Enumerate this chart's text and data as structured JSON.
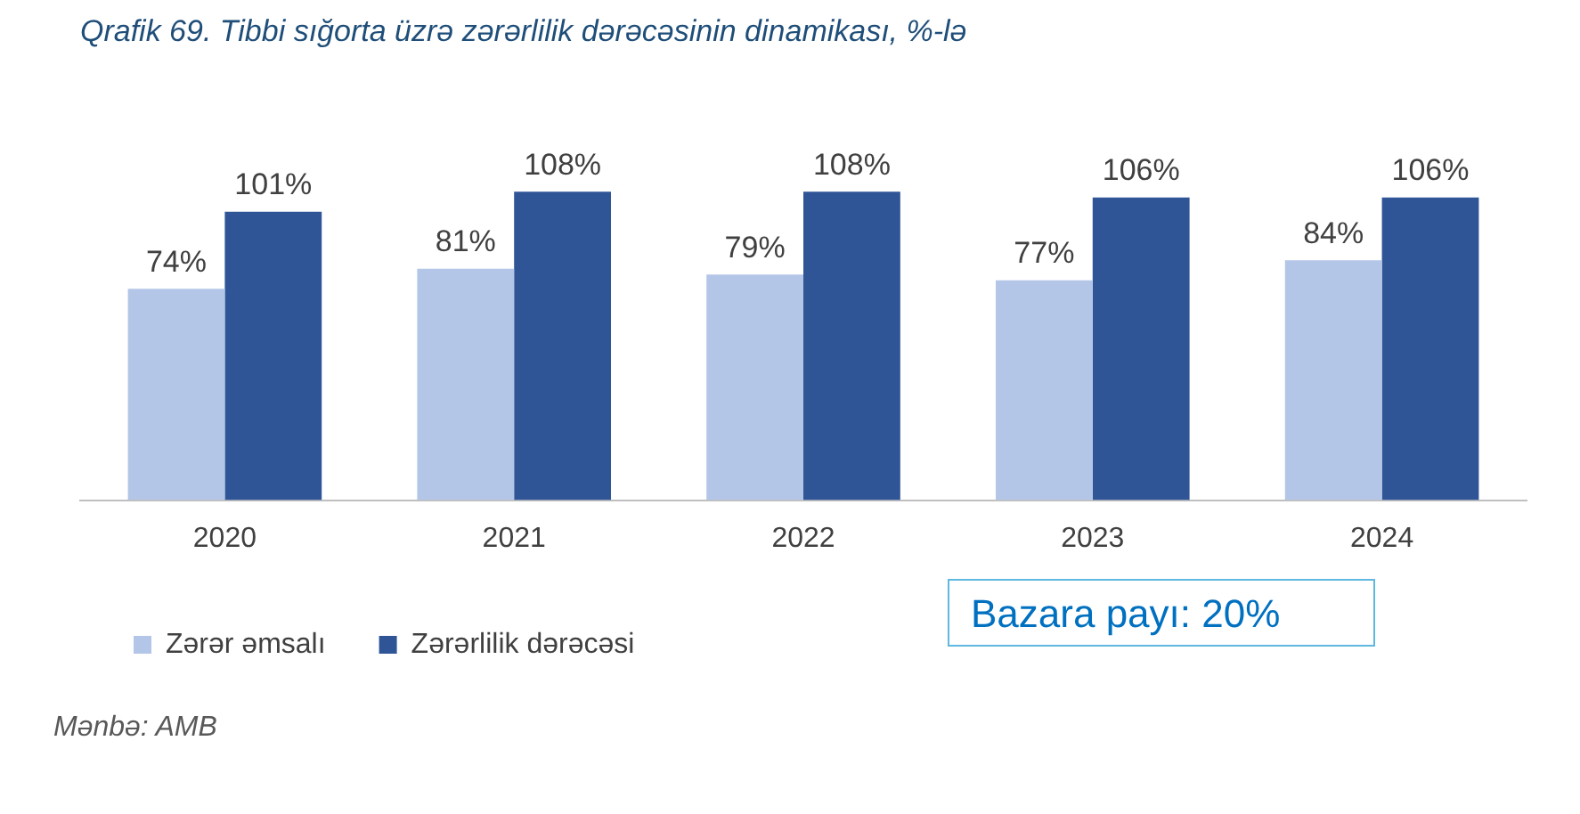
{
  "chart_data": {
    "type": "bar",
    "title": "Qrafik 69. Tibbi sığorta üzrə zərərlilik dərəcəsinin dinamikası, %-lə",
    "categories": [
      "2020",
      "2021",
      "2022",
      "2023",
      "2024"
    ],
    "series": [
      {
        "name": "Zərər əmsalı",
        "color": "#b4c6e7",
        "values": [
          74,
          81,
          79,
          77,
          84
        ],
        "value_labels": [
          "74%",
          "81%",
          "79%",
          "77%",
          "84%"
        ]
      },
      {
        "name": "Zərərlilik dərəcəsi",
        "color": "#2f5597",
        "values": [
          101,
          108,
          108,
          106,
          106
        ],
        "value_labels": [
          "101%",
          "108%",
          "108%",
          "106%",
          "106%"
        ]
      }
    ],
    "legend": "bottom left",
    "grid": false,
    "tick_labels": "x",
    "annotations": [
      "Bazara payı: 20%",
      "Mənbə: AMB"
    ]
  }
}
